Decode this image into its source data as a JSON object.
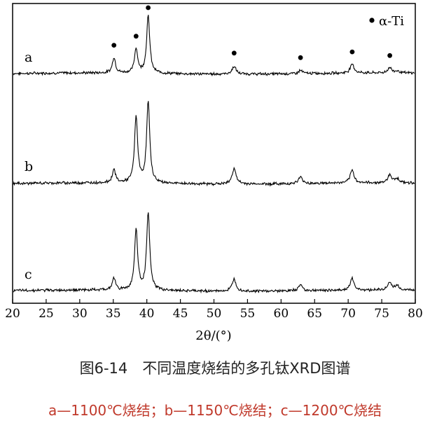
{
  "chart_data": {
    "type": "line",
    "xlabel": "2θ/(°)",
    "xlim": [
      20,
      80
    ],
    "x_ticks": [
      "20",
      "25",
      "30",
      "35",
      "40",
      "45",
      "50",
      "55",
      "60",
      "65",
      "70",
      "75",
      "80"
    ],
    "grid": false,
    "legend": {
      "position": "top-right",
      "marker": "●",
      "label": "α-Ti"
    },
    "series": [
      {
        "name": "a",
        "peaks": [
          [
            35.1,
            0.52
          ],
          [
            38.4,
            0.82
          ],
          [
            40.2,
            1.9
          ],
          [
            53.0,
            0.26
          ],
          [
            62.9,
            0.11
          ],
          [
            70.6,
            0.3
          ],
          [
            76.2,
            0.18
          ],
          [
            77.3,
            0.07
          ]
        ]
      },
      {
        "name": "b",
        "peaks": [
          [
            35.1,
            0.45
          ],
          [
            38.4,
            2.2
          ],
          [
            40.2,
            2.7
          ],
          [
            53.0,
            0.53
          ],
          [
            62.9,
            0.22
          ],
          [
            70.6,
            0.42
          ],
          [
            76.2,
            0.28
          ],
          [
            77.3,
            0.15
          ]
        ]
      },
      {
        "name": "c",
        "peaks": [
          [
            35.1,
            0.4
          ],
          [
            38.4,
            2.0
          ],
          [
            40.2,
            2.55
          ],
          [
            53.0,
            0.42
          ],
          [
            62.9,
            0.2
          ],
          [
            70.6,
            0.38
          ],
          [
            76.2,
            0.26
          ],
          [
            77.3,
            0.15
          ]
        ]
      }
    ],
    "peak_markers_2theta": [
      35.1,
      38.4,
      40.2,
      53.0,
      62.9,
      70.6,
      76.2
    ]
  },
  "caption": {
    "title": "图6-14　不同温度烧结的多孔钛XRD图谱",
    "subtitle": "a—1100℃烧结；b—1150℃烧结；c—1200℃烧结"
  }
}
